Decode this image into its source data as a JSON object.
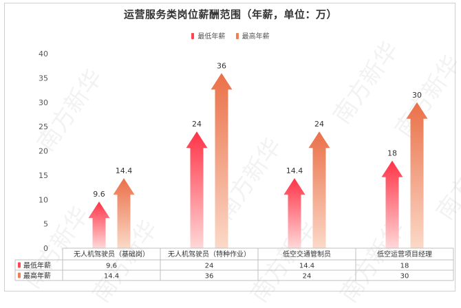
{
  "chart_data": {
    "type": "bar",
    "title": "运营服务类岗位薪酬范围（年薪，单位：万）",
    "categories": [
      "无人机驾驶员（基础岗）",
      "无人机驾驶员（特种作业）",
      "低空交通管制员",
      "低空运营项目经理"
    ],
    "series": [
      {
        "name": "最低年薪",
        "values": [
          9.6,
          24,
          14.4,
          18
        ],
        "color": "#ff4655"
      },
      {
        "name": "最高年薪",
        "values": [
          14.4,
          36,
          24,
          30
        ],
        "color": "#ef8055"
      }
    ],
    "ylim": [
      0,
      40
    ],
    "yticks": [
      0,
      5,
      10,
      15,
      20,
      25,
      30,
      35,
      40
    ],
    "legend": "top-center",
    "grid": false,
    "data_table": true
  },
  "watermark": "南方新华"
}
